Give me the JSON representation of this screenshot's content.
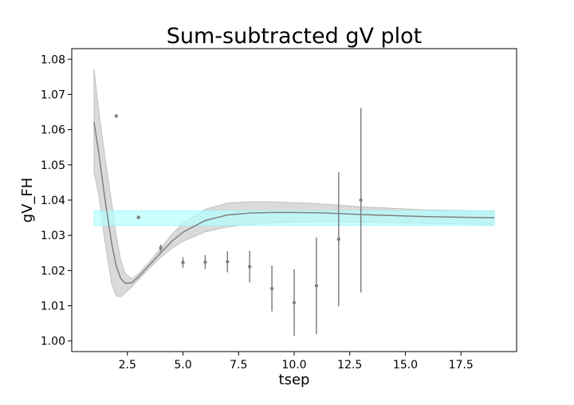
{
  "chart_data": {
    "type": "line",
    "title": "Sum-subtracted gV plot",
    "xlabel": "tsep",
    "ylabel": "gV_FH",
    "xlim": [
      0.0,
      20.0
    ],
    "ylim": [
      0.997,
      1.083
    ],
    "xticks": [
      2.5,
      5.0,
      7.5,
      10.0,
      12.5,
      15.0,
      17.5
    ],
    "xtick_labels": [
      "2.5",
      "5.0",
      "7.5",
      "10.0",
      "12.5",
      "15.0",
      "17.5"
    ],
    "yticks": [
      1.0,
      1.01,
      1.02,
      1.03,
      1.04,
      1.05,
      1.06,
      1.07,
      1.08
    ],
    "ytick_labels": [
      "1.00",
      "1.01",
      "1.02",
      "1.03",
      "1.04",
      "1.05",
      "1.06",
      "1.07",
      "1.08"
    ],
    "grid": false,
    "legend": "none",
    "colors": {
      "points": "#808080",
      "fit_line": "#808080",
      "fit_band": "#d3d3d3",
      "constant_band": "#b3ffff"
    },
    "points": [
      {
        "x": 2,
        "y": 1.0639,
        "err": 0.0004
      },
      {
        "x": 3,
        "y": 1.0351,
        "err": 0.0005
      },
      {
        "x": 4,
        "y": 1.0264,
        "err": 0.001
      },
      {
        "x": 5,
        "y": 1.0223,
        "err": 0.0015
      },
      {
        "x": 6,
        "y": 1.0224,
        "err": 0.002
      },
      {
        "x": 7,
        "y": 1.0225,
        "err": 0.003
      },
      {
        "x": 8,
        "y": 1.0211,
        "err": 0.0045
      },
      {
        "x": 9,
        "y": 1.0149,
        "err": 0.0065
      },
      {
        "x": 10,
        "y": 1.0109,
        "err": 0.0095
      },
      {
        "x": 11,
        "y": 1.0157,
        "err": 0.0137
      },
      {
        "x": 12,
        "y": 1.0289,
        "err": 0.019
      },
      {
        "x": 13,
        "y": 1.04,
        "err": 0.0262
      }
    ],
    "fit": {
      "x": [
        1.0,
        1.2,
        1.5,
        1.8,
        2.0,
        2.2,
        2.4,
        2.7,
        3.0,
        3.5,
        4.0,
        4.5,
        5.0,
        6.0,
        7.0,
        8.0,
        9.0,
        10.0,
        11.0,
        12.0,
        13.0,
        14.0,
        15.0,
        16.0,
        17.0,
        18.0,
        19.0
      ],
      "y": [
        1.0621,
        1.054,
        1.04,
        1.0275,
        1.0213,
        1.0178,
        1.0164,
        1.0165,
        1.0182,
        1.0216,
        1.025,
        1.0283,
        1.0309,
        1.0342,
        1.0358,
        1.0363,
        1.0365,
        1.0365,
        1.0364,
        1.0362,
        1.0359,
        1.0357,
        1.0355,
        1.0353,
        1.0352,
        1.0351,
        1.035
      ],
      "lower": [
        1.0478,
        1.0419,
        1.028,
        1.016,
        1.0128,
        1.0125,
        1.0136,
        1.0154,
        1.0174,
        1.0207,
        1.0237,
        1.0263,
        1.0283,
        1.031,
        1.0324,
        1.0331,
        1.0335,
        1.0337,
        1.0338,
        1.0338,
        1.0337,
        1.0336,
        1.0335,
        1.0334,
        1.0333,
        1.0332,
        1.0331
      ],
      "upper": [
        1.0773,
        1.0661,
        1.052,
        1.039,
        1.0298,
        1.0231,
        1.0192,
        1.0176,
        1.019,
        1.0225,
        1.0263,
        1.0303,
        1.0335,
        1.0374,
        1.0392,
        1.0395,
        1.0395,
        1.0393,
        1.039,
        1.0386,
        1.0381,
        1.0378,
        1.0375,
        1.0372,
        1.0371,
        1.037,
        1.0369
      ]
    },
    "constant_band": {
      "x": [
        1.0,
        19.0
      ],
      "lower": 1.0328,
      "upper": 1.037
    }
  }
}
